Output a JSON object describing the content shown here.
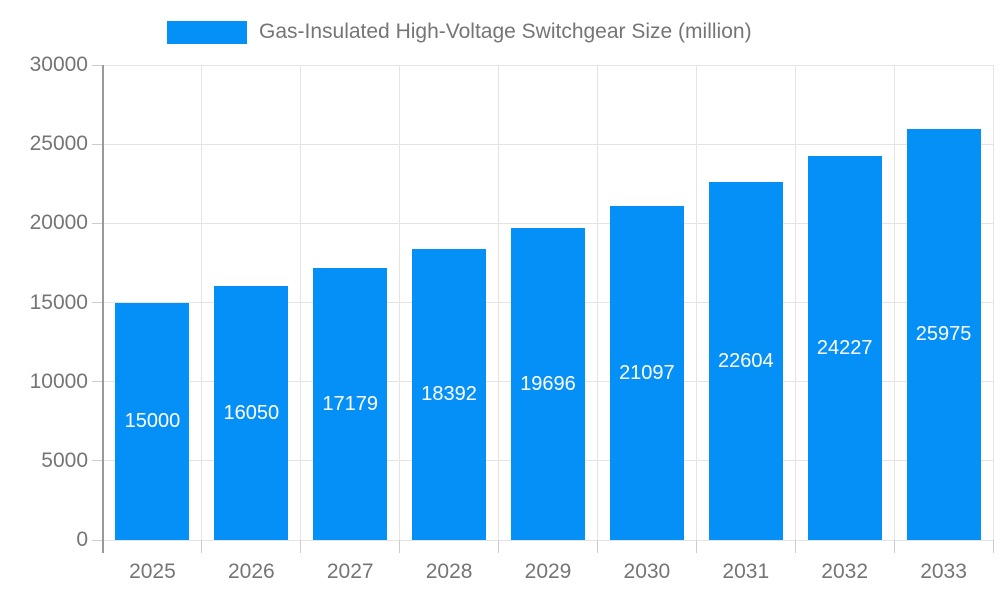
{
  "chart_data": {
    "type": "bar",
    "title": "Gas-Insulated High-Voltage Switchgear Size (million)",
    "legend": {
      "position": "top",
      "label": "Gas-Insulated High-Voltage Switchgear Size (million)"
    },
    "categories": [
      "2025",
      "2026",
      "2027",
      "2028",
      "2029",
      "2030",
      "2031",
      "2032",
      "2033"
    ],
    "series": [
      {
        "name": "Gas-Insulated High-Voltage Switchgear Size (million)",
        "values": [
          15000,
          16050,
          17179,
          18392,
          19696,
          21097,
          22604,
          24227,
          25975
        ]
      }
    ],
    "data_labels": [
      "15000",
      "16050",
      "17179",
      "18392",
      "19696",
      "21097",
      "22604",
      "24227",
      "25975"
    ],
    "xlabel": "",
    "ylabel": "",
    "ylim": [
      0,
      30000
    ],
    "yticks": [
      0,
      5000,
      10000,
      15000,
      20000,
      25000,
      30000
    ],
    "ytick_labels": [
      "0",
      "5000",
      "10000",
      "15000",
      "20000",
      "25000",
      "30000"
    ],
    "grid": true,
    "colors": {
      "bar": "#0590f8",
      "bar_value_text": "#ffffff",
      "axis_text": "#757575",
      "legend_text": "#757575",
      "gridline": "#e4e4e4",
      "axis_line": "#999999",
      "background": "#ffffff"
    }
  }
}
